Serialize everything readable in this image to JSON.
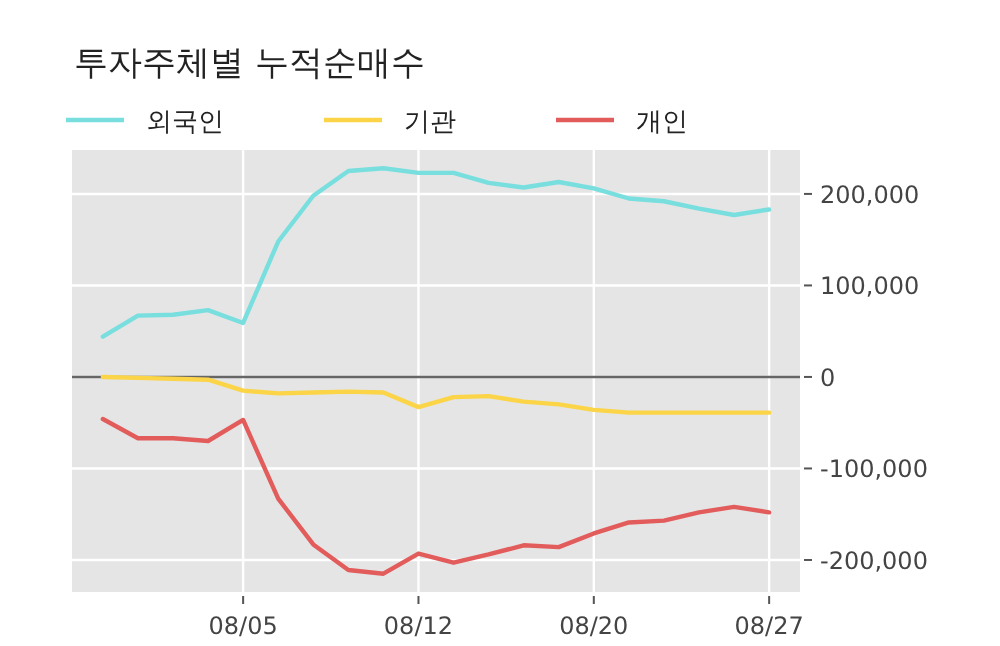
{
  "chart_data": {
    "type": "line",
    "title": "투자주체별 누적순매수",
    "categories": [
      null,
      null,
      null,
      null,
      "08/05",
      null,
      null,
      null,
      null,
      "08/12",
      null,
      null,
      null,
      null,
      "08/20",
      null,
      null,
      null,
      null,
      "08/27"
    ],
    "series": [
      {
        "name": "외국인",
        "color": "#79dede",
        "values": [
          44000,
          67000,
          68000,
          73000,
          59000,
          148000,
          198000,
          225000,
          228000,
          223000,
          223000,
          212000,
          207000,
          213000,
          206000,
          195000,
          192000,
          184000,
          177000,
          183000
        ]
      },
      {
        "name": "기관",
        "color": "#fbd447",
        "values": [
          0,
          -1000,
          -2000,
          -3000,
          -15000,
          -18000,
          -17000,
          -16000,
          -17000,
          -33000,
          -22000,
          -21000,
          -27000,
          -30000,
          -36000,
          -39000,
          -39000,
          -39000,
          -39000,
          -39000
        ]
      },
      {
        "name": "개인",
        "color": "#e35c5c",
        "values": [
          -46000,
          -67000,
          -67000,
          -70000,
          -47000,
          -133000,
          -183000,
          -211000,
          -215000,
          -193000,
          -203000,
          -194000,
          -184000,
          -186000,
          -171000,
          -159000,
          -157000,
          -148000,
          -142000,
          -148000
        ]
      }
    ],
    "ylim": [
      -235000,
      248000
    ],
    "yticks": [
      {
        "value": -200000,
        "label": "-200,000"
      },
      {
        "value": -100000,
        "label": "-100,000"
      },
      0,
      {
        "value": 100000,
        "label": "100,000"
      },
      {
        "value": 200000,
        "label": "200,000"
      }
    ],
    "ref_lines": [
      {
        "axis": "y",
        "value": 0,
        "color": "#666666"
      }
    ],
    "grid": true,
    "legend": "top left"
  }
}
